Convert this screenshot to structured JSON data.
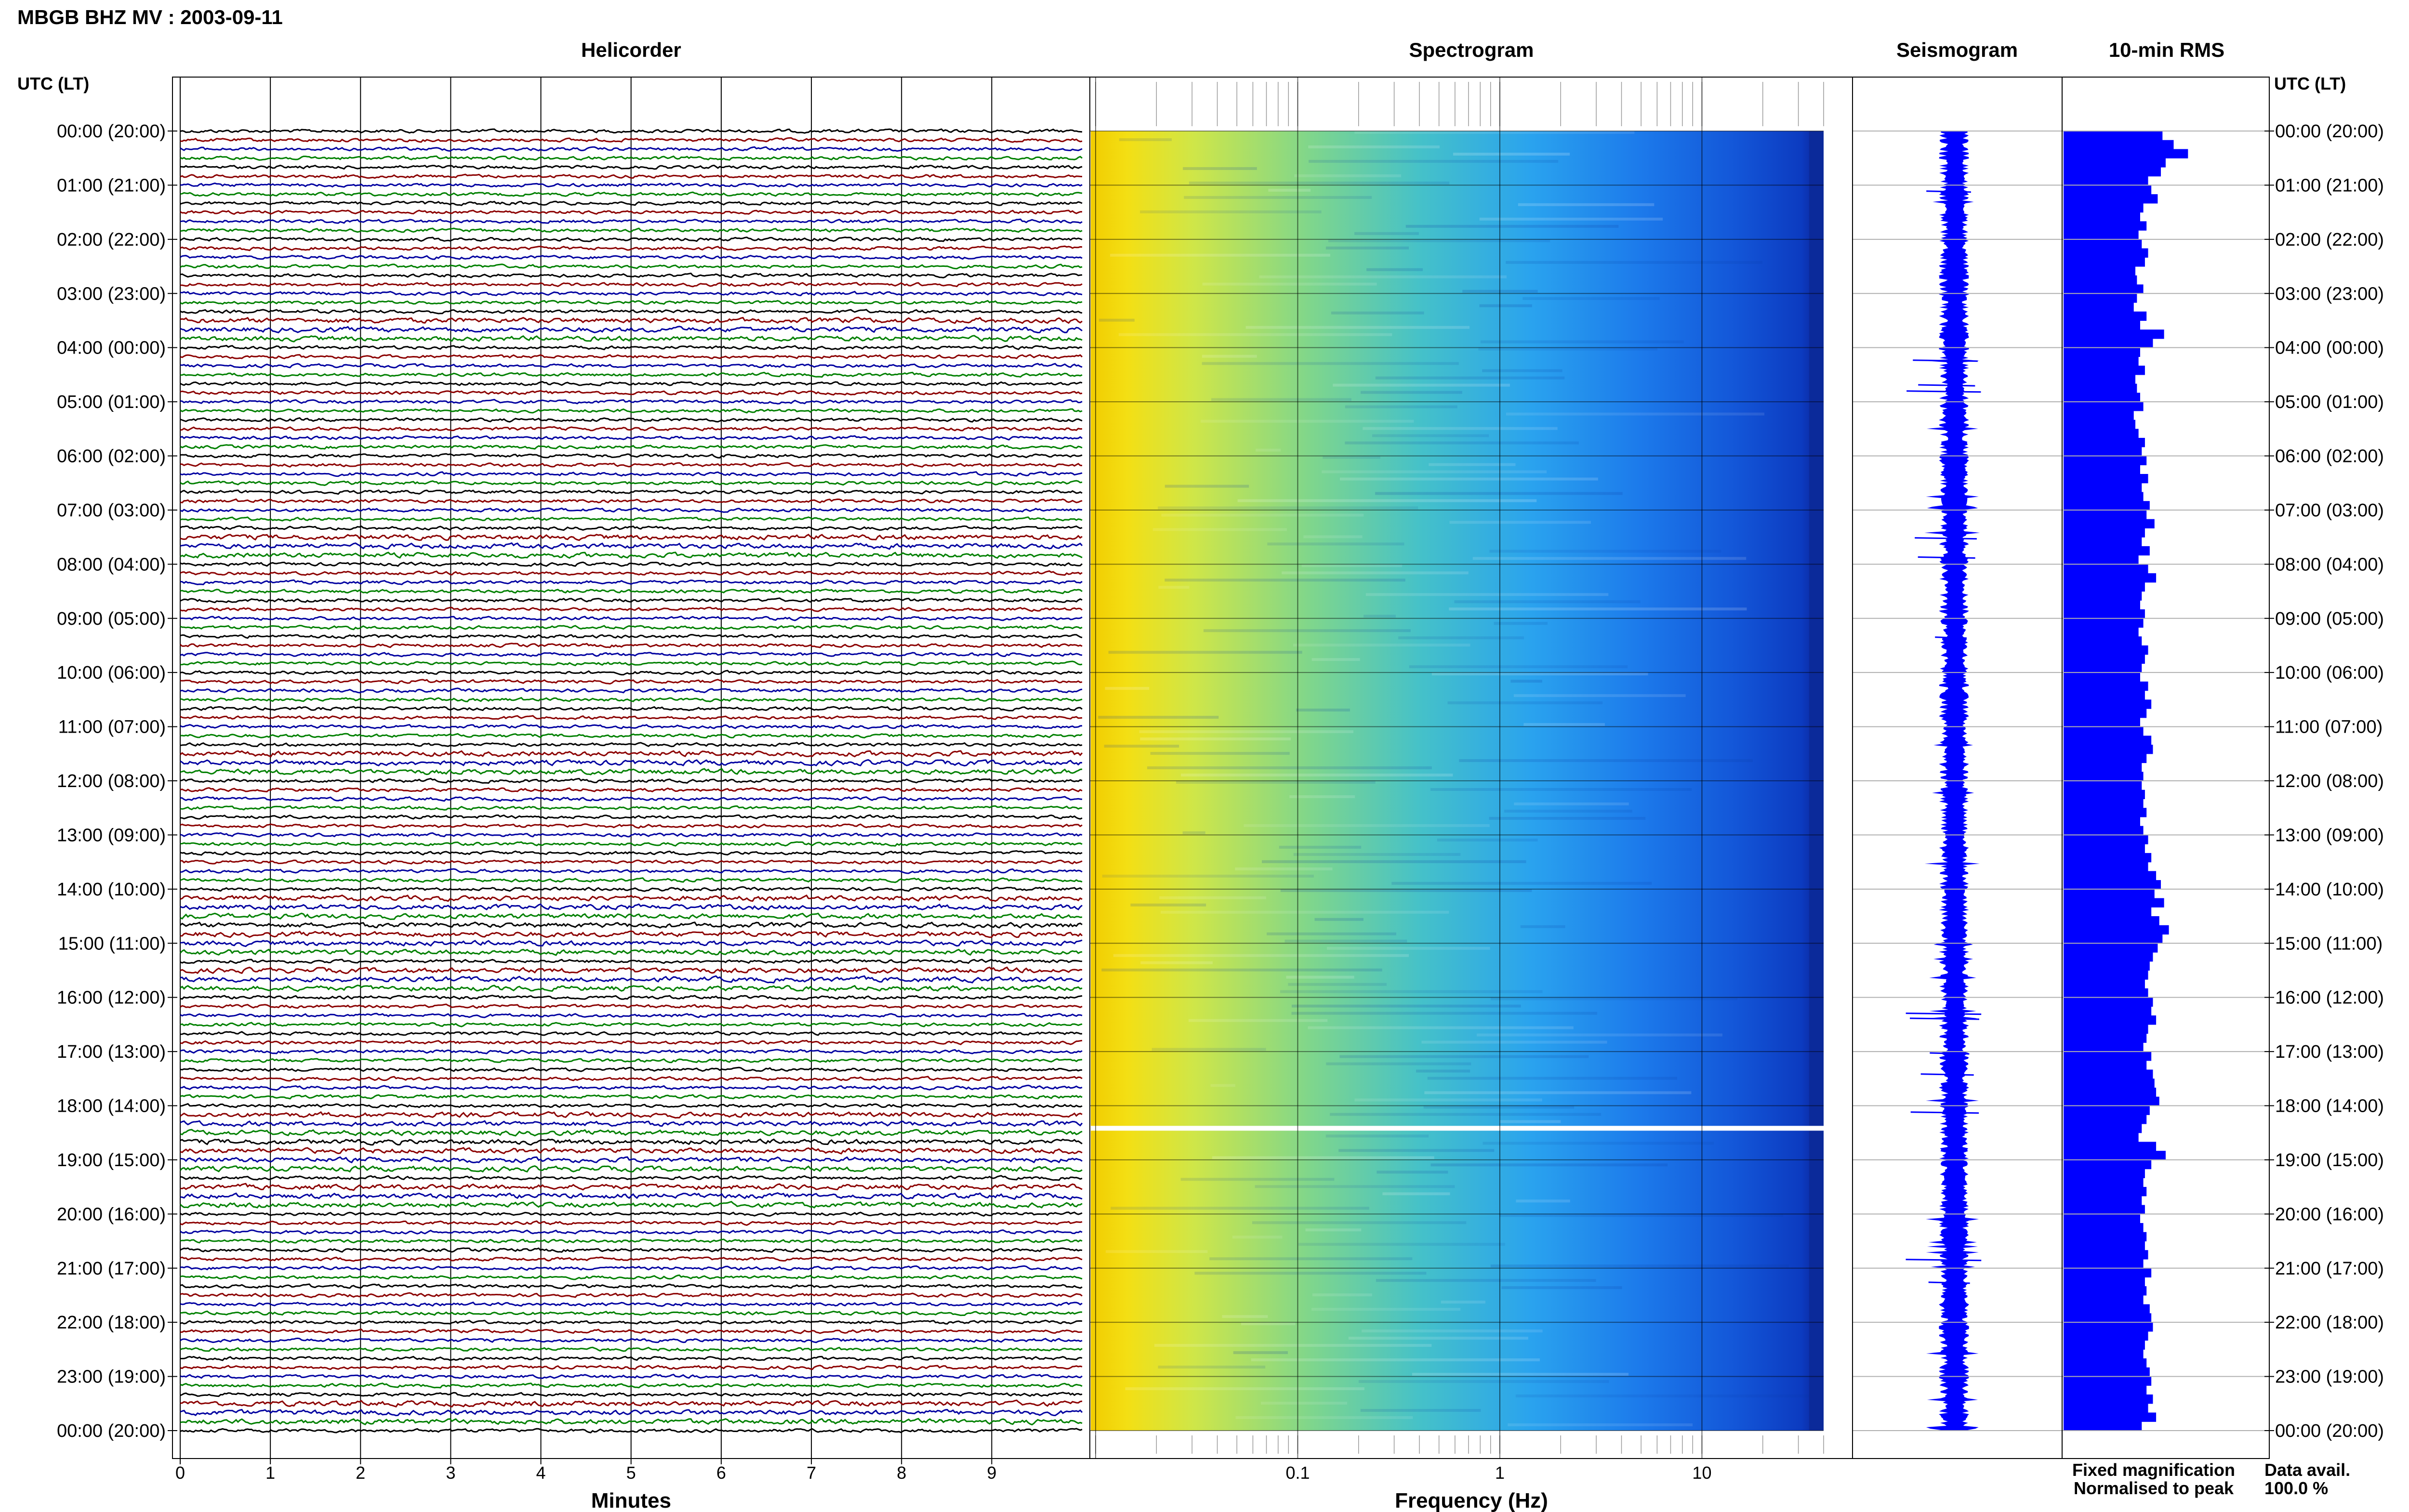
{
  "header": {
    "title": "MBGB BHZ MV : 2003-09-11"
  },
  "panels": {
    "helicorder": "Helicorder",
    "spectrogram": "Spectrogram",
    "seismogram": "Seismogram",
    "rms": "10-min RMS"
  },
  "axis": {
    "time_header": "UTC (LT)",
    "minutes_label": "Minutes",
    "frequency_label": "Frequency (Hz)",
    "minute_ticks": [
      "0",
      "1",
      "2",
      "3",
      "4",
      "5",
      "6",
      "7",
      "8",
      "9"
    ],
    "frequency_ticks": [
      "0.1",
      "1",
      "10"
    ],
    "time_labels": [
      "00:00 (20:00)",
      "01:00 (21:00)",
      "02:00 (22:00)",
      "03:00 (23:00)",
      "04:00 (00:00)",
      "05:00 (01:00)",
      "06:00 (02:00)",
      "07:00 (03:00)",
      "08:00 (04:00)",
      "09:00 (05:00)",
      "10:00 (06:00)",
      "11:00 (07:00)",
      "12:00 (08:00)",
      "13:00 (09:00)",
      "14:00 (10:00)",
      "15:00 (11:00)",
      "16:00 (12:00)",
      "17:00 (13:00)",
      "18:00 (14:00)",
      "19:00 (15:00)",
      "20:00 (16:00)",
      "21:00 (17:00)",
      "22:00 (18:00)",
      "23:00 (19:00)",
      "00:00 (20:00)"
    ]
  },
  "legend": {
    "fixed": "Fixed magnification",
    "normalised": "Normalised to peak",
    "fixed_color": "#0000ff",
    "normalised_color": "#ff0000"
  },
  "availability": {
    "label": "Data avail.",
    "value": "100.0 %"
  },
  "colors": {
    "trace_cycle": [
      "#000000",
      "#8b0000",
      "#0000a0",
      "#008000"
    ],
    "rms_bar": "#0000ff",
    "seismogram": "#0000ff"
  },
  "chart_data": {
    "type": "bar",
    "title": "10-min RMS",
    "xlabel": "",
    "ylabel": "UTC (LT)",
    "ylim": [
      0,
      24
    ],
    "helicorder": {
      "line_count": 144,
      "minutes_range": [
        0,
        10
      ],
      "gap_after_minutes": "18:25"
    },
    "spectrogram": {
      "frequency_range": [
        0.01,
        40
      ],
      "log_scale": true
    },
    "rms_values": [
      0.62,
      0.69,
      0.78,
      0.64,
      0.61,
      0.53,
      0.55,
      0.59,
      0.5,
      0.48,
      0.52,
      0.47,
      0.49,
      0.53,
      0.51,
      0.45,
      0.46,
      0.5,
      0.46,
      0.44,
      0.52,
      0.48,
      0.63,
      0.56,
      0.48,
      0.47,
      0.51,
      0.45,
      0.46,
      0.48,
      0.5,
      0.44,
      0.45,
      0.47,
      0.51,
      0.49,
      0.52,
      0.48,
      0.53,
      0.49,
      0.5,
      0.54,
      0.52,
      0.57,
      0.51,
      0.49,
      0.54,
      0.47,
      0.53,
      0.58,
      0.51,
      0.49,
      0.48,
      0.51,
      0.5,
      0.47,
      0.49,
      0.53,
      0.51,
      0.49,
      0.48,
      0.53,
      0.51,
      0.55,
      0.52,
      0.48,
      0.5,
      0.55,
      0.56,
      0.52,
      0.49,
      0.5,
      0.49,
      0.51,
      0.5,
      0.52,
      0.48,
      0.5,
      0.53,
      0.51,
      0.55,
      0.53,
      0.58,
      0.61,
      0.57,
      0.63,
      0.55,
      0.6,
      0.66,
      0.62,
      0.59,
      0.56,
      0.54,
      0.53,
      0.51,
      0.53,
      0.56,
      0.55,
      0.58,
      0.53,
      0.52,
      0.5,
      0.55,
      0.52,
      0.56,
      0.57,
      0.58,
      0.6,
      0.54,
      0.52,
      0.49,
      0.47,
      0.58,
      0.64,
      0.55,
      0.51,
      0.5,
      0.52,
      0.49,
      0.51,
      0.48,
      0.5,
      0.52,
      0.51,
      0.53,
      0.5,
      0.55,
      0.51,
      0.52,
      0.5,
      0.54,
      0.55,
      0.56,
      0.53,
      0.51,
      0.5,
      0.52,
      0.54,
      0.55,
      0.52,
      0.56,
      0.53,
      0.58,
      0.49
    ]
  }
}
